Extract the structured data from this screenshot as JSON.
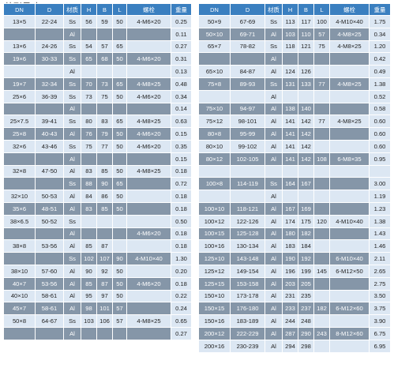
{
  "section_title": "外形尺寸",
  "headers": {
    "left": [
      "DN",
      "D",
      "材质",
      "H",
      "B",
      "L",
      "螺栓",
      "重量"
    ],
    "right": [
      "DN",
      "D",
      "材质",
      "H",
      "B",
      "L",
      "螺栓",
      "重量"
    ]
  },
  "left_rows": [
    {
      "dn": "13×5",
      "d": "22-24",
      "mat": "Ss",
      "h": "56",
      "b": "59",
      "l": "50",
      "bolt": "4-M6×20",
      "w": "0.25"
    },
    {
      "dn": "",
      "d": "",
      "mat": "Al",
      "h": "",
      "b": "",
      "l": "",
      "bolt": "",
      "w": "0.11"
    },
    {
      "dn": "13×6",
      "d": "24-26",
      "mat": "Ss",
      "h": "54",
      "b": "57",
      "l": "65",
      "bolt": "",
      "w": "0.27"
    },
    {
      "dn": "19×6",
      "d": "30-33",
      "mat": "Ss",
      "h": "65",
      "b": "68",
      "l": "50",
      "bolt": "4-M6×20",
      "w": "0.31"
    },
    {
      "dn": "",
      "d": "",
      "mat": "Al",
      "h": "",
      "b": "",
      "l": "",
      "bolt": "",
      "w": "0.13"
    },
    {
      "dn": "19×7",
      "d": "32-34",
      "mat": "Ss",
      "h": "70",
      "b": "73",
      "l": "65",
      "bolt": "4-M8×25",
      "w": "0.48"
    },
    {
      "dn": "25×6",
      "d": "36-39",
      "mat": "Ss",
      "h": "73",
      "b": "75",
      "l": "50",
      "bolt": "4-M6×20",
      "w": "0.34"
    },
    {
      "dn": "",
      "d": "",
      "mat": "Al",
      "h": "",
      "b": "",
      "l": "",
      "bolt": "",
      "w": "0.14"
    },
    {
      "dn": "25×7.5",
      "d": "39-41",
      "mat": "Ss",
      "h": "80",
      "b": "83",
      "l": "65",
      "bolt": "4-M8×25",
      "w": "0.63"
    },
    {
      "dn": "25×8",
      "d": "40-43",
      "mat": "Al",
      "h": "76",
      "b": "79",
      "l": "50",
      "bolt": "4-M6×20",
      "w": "0.15"
    },
    {
      "dn": "32×6",
      "d": "43-46",
      "mat": "Ss",
      "h": "75",
      "b": "77",
      "l": "50",
      "bolt": "4-M6×20",
      "w": "0.35"
    },
    {
      "dn": "",
      "d": "",
      "mat": "Al",
      "h": "",
      "b": "",
      "l": "",
      "bolt": "",
      "w": "0.15"
    },
    {
      "dn": "32×8",
      "d": "47-50",
      "mat": "Al",
      "h": "83",
      "b": "85",
      "l": "50",
      "bolt": "4-M8×25",
      "w": "0.18"
    },
    {
      "dn": "",
      "d": "",
      "mat": "Ss",
      "h": "88",
      "b": "90",
      "l": "65",
      "bolt": "",
      "w": "0.72"
    },
    {
      "dn": "32×10",
      "d": "50-53",
      "mat": "Al",
      "h": "84",
      "b": "86",
      "l": "50",
      "bolt": "",
      "w": "0.18"
    },
    {
      "dn": "35×6",
      "d": "48-51",
      "mat": "Al",
      "h": "83",
      "b": "85",
      "l": "50",
      "bolt": "",
      "w": "0.18"
    },
    {
      "dn": "38×6.5",
      "d": "50-52",
      "mat": "Ss",
      "h": "",
      "b": "",
      "l": "",
      "bolt": "",
      "w": "0.50"
    },
    {
      "dn": "",
      "d": "",
      "mat": "Al",
      "h": "",
      "b": "",
      "l": "",
      "bolt": "4-M6×20",
      "w": "0.18"
    },
    {
      "dn": "38×8",
      "d": "53-56",
      "mat": "Al",
      "h": "85",
      "b": "87",
      "l": "",
      "bolt": "",
      "w": "0.18"
    },
    {
      "dn": "",
      "d": "",
      "mat": "Ss",
      "h": "102",
      "b": "107",
      "l": "90",
      "bolt": "4-M10×40",
      "w": "1.30"
    },
    {
      "dn": "38×10",
      "d": "57-60",
      "mat": "Al",
      "h": "90",
      "b": "92",
      "l": "50",
      "bolt": "",
      "w": "0.20"
    },
    {
      "dn": "40×7",
      "d": "53-56",
      "mat": "Al",
      "h": "85",
      "b": "87",
      "l": "50",
      "bolt": "4-M6×20",
      "w": "0.18"
    },
    {
      "dn": "40×10",
      "d": "58-61",
      "mat": "Al",
      "h": "95",
      "b": "97",
      "l": "50",
      "bolt": "",
      "w": "0.22"
    },
    {
      "dn": "45×7",
      "d": "58-61",
      "mat": "Al",
      "h": "98",
      "b": "101",
      "l": "57",
      "bolt": "",
      "w": "0.24"
    },
    {
      "dn": "50×8",
      "d": "64-67",
      "mat": "Ss",
      "h": "103",
      "b": "106",
      "l": "57",
      "bolt": "4-M8×25",
      "w": "0.65"
    },
    {
      "dn": "",
      "d": "",
      "mat": "Al",
      "h": "",
      "b": "",
      "l": "",
      "bolt": "",
      "w": "0.27"
    }
  ],
  "right_rows": [
    {
      "dn": "50×9",
      "d": "67-69",
      "mat": "Ss",
      "h": "113",
      "b": "117",
      "l": "100",
      "bolt": "4-M10×40",
      "w": "1.75"
    },
    {
      "dn": "50×10",
      "d": "69-71",
      "mat": "Al",
      "h": "103",
      "b": "110",
      "l": "57",
      "bolt": "4-M8×25",
      "w": "0.34"
    },
    {
      "dn": "65×7",
      "d": "78-82",
      "mat": "Ss",
      "h": "118",
      "b": "121",
      "l": "75",
      "bolt": "4-M8×25",
      "w": "1.20"
    },
    {
      "dn": "",
      "d": "",
      "mat": "Al",
      "h": "",
      "b": "",
      "l": "",
      "bolt": "",
      "w": "0.42"
    },
    {
      "dn": "65×10",
      "d": "84-87",
      "mat": "Al",
      "h": "124",
      "b": "126",
      "l": "",
      "bolt": "",
      "w": "0.49"
    },
    {
      "dn": "75×8",
      "d": "89-93",
      "mat": "Ss",
      "h": "131",
      "b": "133",
      "l": "77",
      "bolt": "4-M8×25",
      "w": "1.38"
    },
    {
      "dn": "",
      "d": "",
      "mat": "Al",
      "h": "",
      "b": "",
      "l": "",
      "bolt": "",
      "w": "0.52"
    },
    {
      "dn": "75×10",
      "d": "94-97",
      "mat": "Al",
      "h": "138",
      "b": "140",
      "l": "",
      "bolt": "",
      "w": "0.58"
    },
    {
      "dn": "75×12",
      "d": "98-101",
      "mat": "Al",
      "h": "141",
      "b": "142",
      "l": "77",
      "bolt": "4-M8×25",
      "w": "0.60"
    },
    {
      "dn": "80×8",
      "d": "95-99",
      "mat": "Al",
      "h": "141",
      "b": "142",
      "l": "",
      "bolt": "",
      "w": "0.60"
    },
    {
      "dn": "80×10",
      "d": "99-102",
      "mat": "Al",
      "h": "141",
      "b": "142",
      "l": "",
      "bolt": "",
      "w": "0.60"
    },
    {
      "dn": "80×12",
      "d": "102-105",
      "mat": "Al",
      "h": "141",
      "b": "142",
      "l": "108",
      "bolt": "6-M8×35",
      "w": "0.95"
    },
    {
      "dn": "",
      "d": "",
      "mat": "",
      "h": "",
      "b": "",
      "l": "",
      "bolt": "",
      "w": ""
    },
    {
      "dn": "100×8",
      "d": "114-119",
      "mat": "Ss",
      "h": "164",
      "b": "167",
      "l": "",
      "bolt": "",
      "w": "3.00"
    },
    {
      "dn": "",
      "d": "",
      "mat": "Al",
      "h": "",
      "b": "",
      "l": "",
      "bolt": "",
      "w": "1.19"
    },
    {
      "dn": "100×10",
      "d": "118-121",
      "mat": "Al",
      "h": "167",
      "b": "169",
      "l": "",
      "bolt": "",
      "w": "1.23"
    },
    {
      "dn": "100×12",
      "d": "122-126",
      "mat": "Al",
      "h": "174",
      "b": "175",
      "l": "120",
      "bolt": "4-M10×40",
      "w": "1.38"
    },
    {
      "dn": "100×15",
      "d": "125-128",
      "mat": "Al",
      "h": "180",
      "b": "182",
      "l": "",
      "bolt": "",
      "w": "1.43"
    },
    {
      "dn": "100×16",
      "d": "130-134",
      "mat": "Al",
      "h": "183",
      "b": "184",
      "l": "",
      "bolt": "",
      "w": "1.46"
    },
    {
      "dn": "125×10",
      "d": "143-148",
      "mat": "Al",
      "h": "190",
      "b": "192",
      "l": "",
      "bolt": "6-M10×40",
      "w": "2.11"
    },
    {
      "dn": "125×12",
      "d": "149-154",
      "mat": "Al",
      "h": "196",
      "b": "199",
      "l": "145",
      "bolt": "6-M12×50",
      "w": "2.65"
    },
    {
      "dn": "125×15",
      "d": "153-158",
      "mat": "Al",
      "h": "203",
      "b": "205",
      "l": "",
      "bolt": "",
      "w": "2.75"
    },
    {
      "dn": "150×10",
      "d": "173-178",
      "mat": "Al",
      "h": "231",
      "b": "235",
      "l": "",
      "bolt": "",
      "w": "3.50"
    },
    {
      "dn": "150×15",
      "d": "176-180",
      "mat": "Al",
      "h": "233",
      "b": "237",
      "l": "182",
      "bolt": "6-M12×60",
      "w": "3.75"
    },
    {
      "dn": "150×16",
      "d": "183-189",
      "mat": "Al",
      "h": "244",
      "b": "248",
      "l": "",
      "bolt": "",
      "w": "3.90"
    },
    {
      "dn": "200×12",
      "d": "222-229",
      "mat": "Al",
      "h": "287",
      "b": "290",
      "l": "243",
      "bolt": "8-M12×60",
      "w": "6.75"
    },
    {
      "dn": "200×16",
      "d": "230-239",
      "mat": "Al",
      "h": "294",
      "b": "298",
      "l": "",
      "bolt": "",
      "w": "6.95"
    }
  ]
}
